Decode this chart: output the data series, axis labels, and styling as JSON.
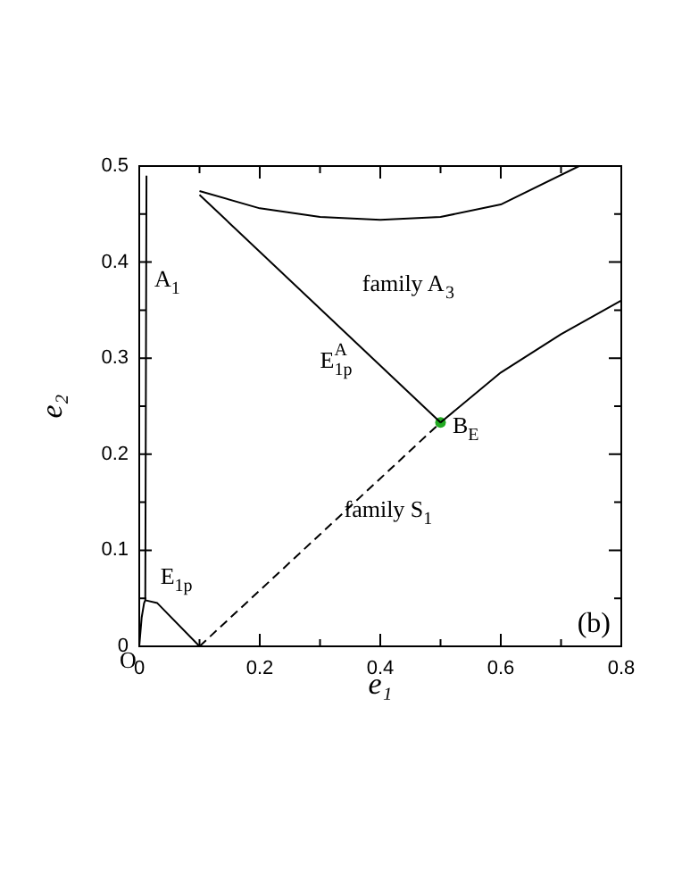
{
  "chart_data": {
    "type": "line",
    "xlabel": "e₁",
    "ylabel": "e₂",
    "xlim": [
      0,
      0.8
    ],
    "ylim": [
      0,
      0.5
    ],
    "xticks": [
      0,
      {
        "value": 0.1,
        "label": null
      },
      0.2,
      {
        "value": 0.3,
        "label": null
      },
      0.4,
      {
        "value": 0.5,
        "label": null
      },
      0.6,
      {
        "value": 0.7,
        "label": null
      },
      0.8
    ],
    "yticks": [
      0,
      {
        "value": 0.05,
        "label": null
      },
      0.1,
      {
        "value": 0.15,
        "label": null
      },
      0.2,
      {
        "value": 0.25,
        "label": null
      },
      0.3,
      {
        "value": 0.35,
        "label": null
      },
      0.4,
      {
        "value": 0.45,
        "label": null
      },
      0.5
    ],
    "grid": false,
    "legend": false,
    "marker": "none",
    "series": [
      {
        "color": "#000000",
        "x": [
          0,
          0.004,
          0.008,
          0.01,
          0.012
        ],
        "values": [
          0,
          0.03,
          0.045,
          0.048,
          0.49
        ]
      },
      {
        "color": "#000000",
        "x": [
          0.1,
          0.5
        ],
        "values": [
          0.47,
          0.233
        ]
      },
      {
        "color": "#000000",
        "x": [
          0.1,
          0.2,
          0.3,
          0.4,
          0.5,
          0.6,
          0.73
        ],
        "values": [
          0.474,
          0.456,
          0.447,
          0.444,
          0.447,
          0.46,
          0.5
        ]
      },
      {
        "color": "#000000",
        "x": [
          0.01,
          0.03,
          0.1
        ],
        "values": [
          0.048,
          0.045,
          0
        ]
      },
      {
        "color": "#000000",
        "line_style": "dashed",
        "x": [
          0.1,
          0.5
        ],
        "values": [
          0,
          0.233
        ]
      },
      {
        "color": "#000000",
        "x": [
          0.5,
          0.6,
          0.7,
          0.8
        ],
        "values": [
          0.233,
          0.285,
          0.325,
          0.36
        ]
      },
      {
        "type": "scatter",
        "marker": "circle",
        "color": "#22aa22",
        "x": [
          0.5
        ],
        "values": [
          0.233
        ]
      }
    ],
    "annotations": [
      "A$_{1}$",
      "family A$_{3}$",
      "E$^{A}$$_{1p}$",
      "B$_{E}$",
      "family S$_{1}$",
      "E$_{1p}$",
      {
        "text": "O",
        "x": 0,
        "y": 0
      },
      "(b)"
    ]
  }
}
